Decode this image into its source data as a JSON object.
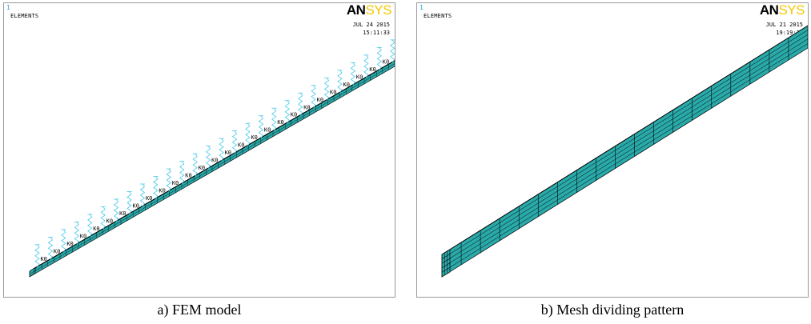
{
  "panels": [
    {
      "window_number": "1",
      "title": "ELEMENTS",
      "logo": {
        "an": "AN",
        "sys": "SYS"
      },
      "date": "JUL 24 2015",
      "time": "15:11:33",
      "spring_label": "K0",
      "caption": "a) FEM model"
    },
    {
      "window_number": "1",
      "title": "ELEMENTS",
      "logo": {
        "an": "AN",
        "sys": "SYS"
      },
      "date": "JUL 21 2015",
      "time": "19:19:20",
      "caption": "b) Mesh dividing pattern"
    }
  ],
  "colors": {
    "element_fill": "#2aa9a9",
    "element_top": "#3bbcbc",
    "spring": "#45c8e8",
    "edge": "#000000",
    "logo_accent": "#f5c800"
  }
}
